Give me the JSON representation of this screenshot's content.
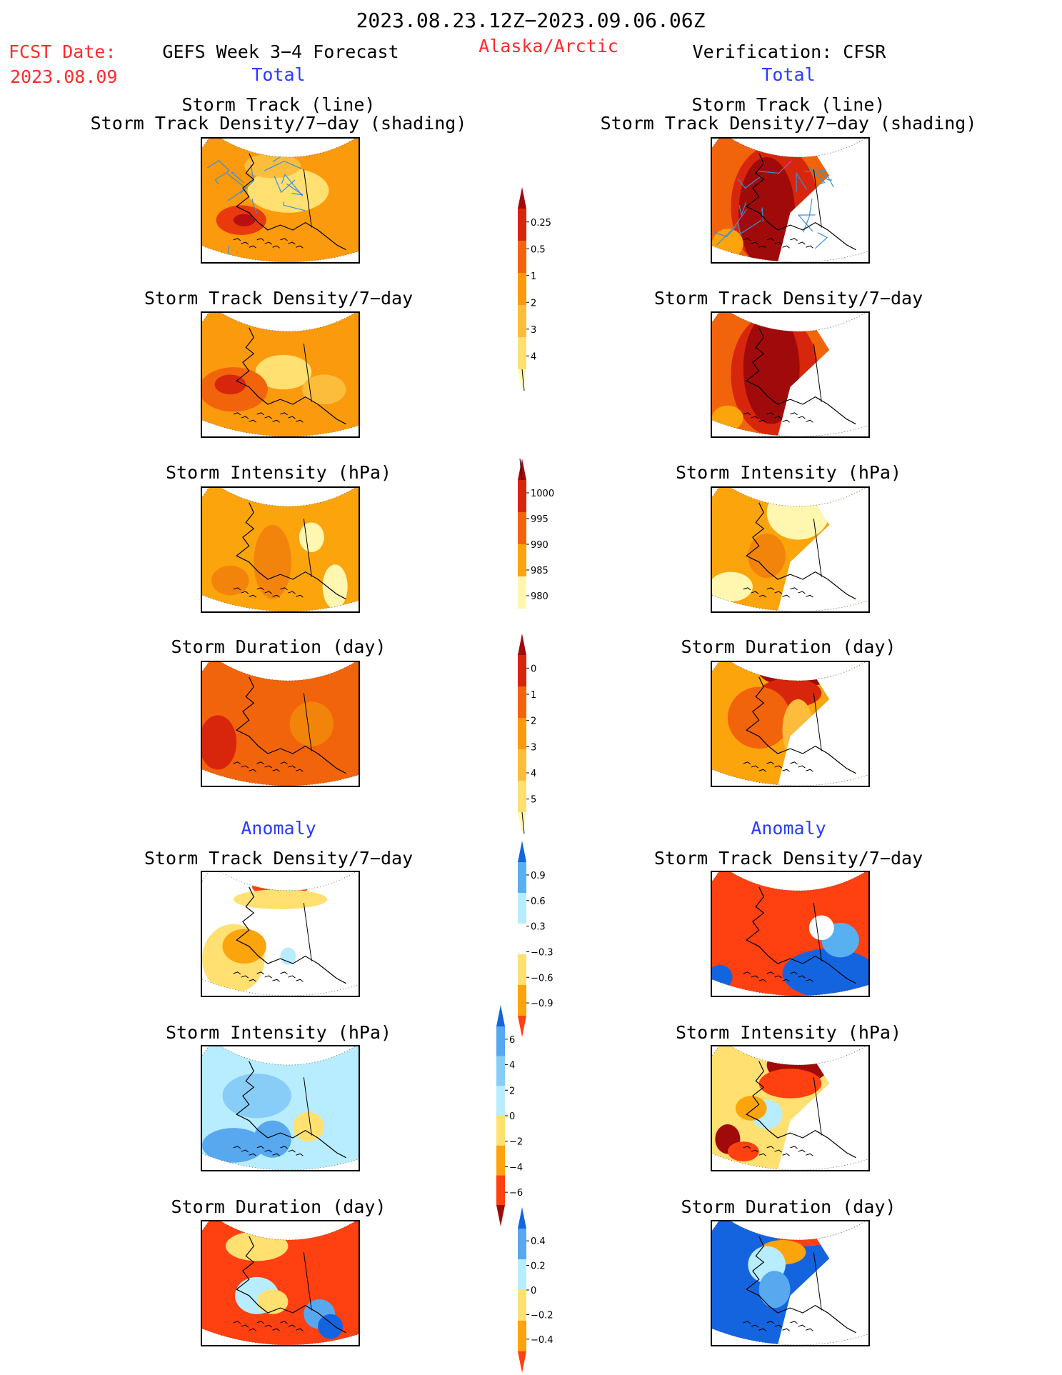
{
  "header": {
    "period": "2023.08.23.12Z−2023.09.06.06Z",
    "fcst_label": "FCST Date:",
    "fcst_date": "2023.08.09",
    "forecast_title": "GEFS Week 3−4 Forecast",
    "region": "Alaska/Arctic",
    "verification_title": "Verification: CFSR"
  },
  "sections": {
    "total": "Total",
    "anomaly": "Anomaly"
  },
  "panel_titles": {
    "track_line": "Storm Track (line)",
    "track_shading": "Storm Track Density/7−day (shading)",
    "density": "Storm Track Density/7−day",
    "intensity": "Storm Intensity (hPa)",
    "duration": "Storm Duration (day)"
  },
  "colorbars": {
    "total_density": {
      "levels": [
        "0.25",
        "0.5",
        "1",
        "2",
        "3",
        "4"
      ],
      "colors": [
        "#fff8b0",
        "#ffe070",
        "#fdbd3c",
        "#fb9a0c",
        "#f2640c",
        "#d8260c",
        "#a00a0a"
      ]
    },
    "total_intensity": {
      "levels": [
        "1000",
        "995",
        "990",
        "985",
        "980"
      ],
      "colors": [
        "#ffffff",
        "#fff6b0",
        "#fca40c",
        "#f2640c",
        "#d8260c",
        "#a00a0a"
      ]
    },
    "total_duration": {
      "levels": [
        "0",
        "1",
        "2",
        "3",
        "4",
        "5"
      ],
      "colors": [
        "#fff8b0",
        "#ffe070",
        "#fdbd3c",
        "#fb9a0c",
        "#f2640c",
        "#d8260c",
        "#a00a0a"
      ]
    },
    "anom_density": {
      "levels": [
        "0.9",
        "0.6",
        "0.3",
        "−0.3",
        "−0.6",
        "−0.9"
      ],
      "colors": [
        "#ff4010",
        "#fca40c",
        "#ffe070",
        "#ffffff",
        "#b8ecff",
        "#58b0f0",
        "#1464e0"
      ]
    },
    "anom_intensity": {
      "levels": [
        "6",
        "4",
        "2",
        "0",
        "−2",
        "−4",
        "−6"
      ],
      "colors": [
        "#a00a0a",
        "#ff4010",
        "#fca40c",
        "#ffe070",
        "#b8ecff",
        "#88ccf8",
        "#58a8f0",
        "#1464e0"
      ]
    },
    "anom_duration": {
      "levels": [
        "0.4",
        "0.2",
        "0",
        "−0.2",
        "−0.4"
      ],
      "colors": [
        "#ff4010",
        "#fca40c",
        "#ffe070",
        "#b8ecff",
        "#58a8f0",
        "#1464e0"
      ]
    }
  },
  "maps": {
    "fc_track": {
      "base": "#fb9a0c",
      "blobs": [
        [
          0.55,
          0.42,
          0.26,
          0.18,
          "#ffe070"
        ],
        [
          0.25,
          0.66,
          0.16,
          0.12,
          "#e83a0c"
        ],
        [
          0.27,
          0.66,
          0.07,
          0.05,
          "#b81010"
        ],
        [
          0.45,
          0.22,
          0.18,
          0.1,
          "#fdbd3c"
        ]
      ],
      "tracks": true
    },
    "vf_track": {
      "base": "#f2640c",
      "blobs": [
        [
          0.4,
          0.55,
          0.28,
          0.5,
          "#d8260c"
        ],
        [
          0.35,
          0.6,
          0.18,
          0.45,
          "#a00a0a"
        ],
        [
          0.1,
          0.85,
          0.1,
          0.12,
          "#fca40c"
        ]
      ],
      "clip_right": true,
      "tracks": true
    },
    "fc_density": {
      "base": "#fb9a0c",
      "blobs": [
        [
          0.52,
          0.48,
          0.18,
          0.14,
          "#ffe070"
        ],
        [
          0.78,
          0.62,
          0.14,
          0.12,
          "#fdbd3c"
        ],
        [
          0.2,
          0.62,
          0.22,
          0.18,
          "#f2640c"
        ],
        [
          0.18,
          0.58,
          0.1,
          0.08,
          "#d8260c"
        ]
      ]
    },
    "vf_density": {
      "base": "#f2640c",
      "blobs": [
        [
          0.4,
          0.5,
          0.28,
          0.5,
          "#d8260c"
        ],
        [
          0.38,
          0.45,
          0.18,
          0.45,
          "#a00a0a"
        ],
        [
          0.1,
          0.85,
          0.1,
          0.1,
          "#fca40c"
        ]
      ],
      "clip_right": true
    },
    "fc_intensity": {
      "base": "#fca40c",
      "blobs": [
        [
          0.45,
          0.6,
          0.12,
          0.3,
          "#f2840c"
        ],
        [
          0.18,
          0.75,
          0.12,
          0.12,
          "#f2840c"
        ],
        [
          0.7,
          0.4,
          0.08,
          0.12,
          "#fff6b0"
        ],
        [
          0.85,
          0.8,
          0.08,
          0.18,
          "#fff6b0"
        ]
      ]
    },
    "vf_intensity": {
      "base": "#fca40c",
      "blobs": [
        [
          0.55,
          0.2,
          0.2,
          0.22,
          "#fff6b0"
        ],
        [
          0.12,
          0.8,
          0.14,
          0.12,
          "#fff6b0"
        ],
        [
          0.35,
          0.55,
          0.12,
          0.18,
          "#f2840c"
        ]
      ],
      "clip_right": true
    },
    "fc_duration": {
      "base": "#f2640c",
      "blobs": [
        [
          0.1,
          0.65,
          0.12,
          0.22,
          "#d8260c"
        ],
        [
          0.7,
          0.5,
          0.14,
          0.18,
          "#f2840c"
        ]
      ]
    },
    "vf_duration": {
      "base": "#fca40c",
      "blobs": [
        [
          0.55,
          0.08,
          0.25,
          0.12,
          "#a00a0a"
        ],
        [
          0.5,
          0.25,
          0.2,
          0.12,
          "#d8260c"
        ],
        [
          0.3,
          0.45,
          0.2,
          0.25,
          "#f2640c"
        ],
        [
          0.55,
          0.55,
          0.1,
          0.25,
          "#fdbd3c"
        ]
      ],
      "clip_right": true
    },
    "fc_anom_density": {
      "base": "#ffffff",
      "blobs": [
        [
          0.2,
          0.7,
          0.2,
          0.28,
          "#ffe070"
        ],
        [
          0.27,
          0.6,
          0.14,
          0.14,
          "#fca40c"
        ],
        [
          0.5,
          0.12,
          0.18,
          0.08,
          "#ff4010"
        ],
        [
          0.5,
          0.22,
          0.3,
          0.08,
          "#ffe070"
        ],
        [
          0.55,
          0.68,
          0.05,
          0.07,
          "#b8ecff"
        ]
      ]
    },
    "vf_anom_density": {
      "base": "#ff4010",
      "blobs": [
        [
          0.75,
          0.82,
          0.3,
          0.2,
          "#1464e0"
        ],
        [
          0.82,
          0.55,
          0.12,
          0.14,
          "#58b0f0"
        ],
        [
          0.05,
          0.85,
          0.08,
          0.1,
          "#1464e0"
        ],
        [
          0.7,
          0.45,
          0.08,
          0.1,
          "#ffffff"
        ]
      ]
    },
    "fc_anom_intensity": {
      "base": "#b8ecff",
      "blobs": [
        [
          0.2,
          0.8,
          0.2,
          0.14,
          "#58a8f0"
        ],
        [
          0.45,
          0.75,
          0.12,
          0.15,
          "#58a8f0"
        ],
        [
          0.35,
          0.4,
          0.22,
          0.18,
          "#88ccf8"
        ],
        [
          0.68,
          0.65,
          0.1,
          0.12,
          "#ffe070"
        ]
      ]
    },
    "vf_anom_intensity": {
      "base": "#ffe070",
      "blobs": [
        [
          0.55,
          0.15,
          0.2,
          0.15,
          "#a00a0a"
        ],
        [
          0.5,
          0.3,
          0.2,
          0.12,
          "#ff4010"
        ],
        [
          0.1,
          0.75,
          0.08,
          0.12,
          "#a00a0a"
        ],
        [
          0.2,
          0.85,
          0.1,
          0.08,
          "#ff4010"
        ],
        [
          0.35,
          0.55,
          0.1,
          0.12,
          "#b8ecff"
        ],
        [
          0.25,
          0.5,
          0.1,
          0.1,
          "#fca40c"
        ]
      ],
      "clip_right": true
    },
    "fc_anom_duration": {
      "base": "#ff4010",
      "blobs": [
        [
          0.35,
          0.2,
          0.2,
          0.12,
          "#ffe070"
        ],
        [
          0.35,
          0.6,
          0.14,
          0.15,
          "#b8ecff"
        ],
        [
          0.45,
          0.65,
          0.1,
          0.1,
          "#ffe070"
        ],
        [
          0.75,
          0.75,
          0.1,
          0.12,
          "#58a8f0"
        ],
        [
          0.82,
          0.85,
          0.08,
          0.1,
          "#1464e0"
        ]
      ]
    },
    "vf_anom_duration": {
      "base": "#1464e0",
      "blobs": [
        [
          0.6,
          0.1,
          0.2,
          0.1,
          "#ff4010"
        ],
        [
          0.45,
          0.25,
          0.15,
          0.1,
          "#fca40c"
        ],
        [
          0.35,
          0.35,
          0.12,
          0.15,
          "#b8ecff"
        ],
        [
          0.4,
          0.55,
          0.1,
          0.15,
          "#58a8f0"
        ]
      ],
      "clip_right": true
    }
  }
}
